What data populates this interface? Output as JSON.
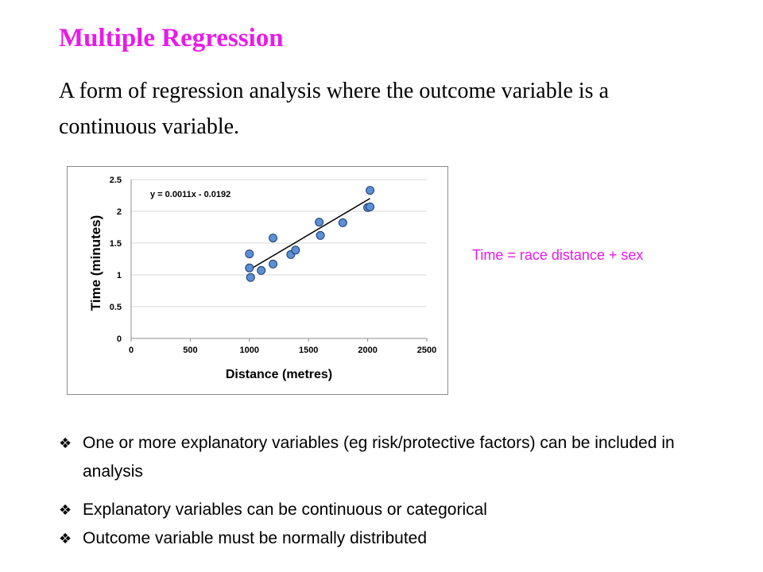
{
  "slide": {
    "title": "Multiple Regression",
    "subtitle": "A form of regression analysis where the outcome variable is a continuous variable.",
    "note": "Time = race distance + sex",
    "bullet_marker": "❖",
    "bullets": [
      "One or more explanatory variables (eg risk/protective factors) can be included in analysis",
      "Explanatory variables can be continuous or categorical",
      "Outcome variable must be normally distributed"
    ]
  },
  "chart_data": {
    "type": "scatter",
    "xlabel": "Distance (metres)",
    "ylabel": "Time (minutes)",
    "xlim": [
      0,
      2500
    ],
    "ylim": [
      0,
      2.5
    ],
    "x_ticks": [
      "0",
      "500",
      "1000",
      "1500",
      "2000",
      "2500"
    ],
    "y_ticks": [
      "0",
      "0.5",
      "1",
      "1.5",
      "2",
      "2.5"
    ],
    "grid": "horizontal",
    "trendline": {
      "label": "y = 0.0011x - 0.0192",
      "slope": 0.0011,
      "intercept": -0.0192,
      "x_range": [
        1000,
        2020
      ]
    },
    "colors": {
      "point_fill": "#5b8fd6",
      "point_stroke": "#1f3d6b",
      "trendline": "#000000",
      "grid": "#d9d9d9"
    },
    "points": [
      {
        "x": 1000,
        "y": 1.33
      },
      {
        "x": 1000,
        "y": 1.11
      },
      {
        "x": 1010,
        "y": 0.96
      },
      {
        "x": 1100,
        "y": 1.07
      },
      {
        "x": 1200,
        "y": 1.58
      },
      {
        "x": 1200,
        "y": 1.17
      },
      {
        "x": 1350,
        "y": 1.32
      },
      {
        "x": 1390,
        "y": 1.39
      },
      {
        "x": 1590,
        "y": 1.83
      },
      {
        "x": 1600,
        "y": 1.62
      },
      {
        "x": 1790,
        "y": 1.82
      },
      {
        "x": 2000,
        "y": 2.06
      },
      {
        "x": 2020,
        "y": 2.33
      },
      {
        "x": 2020,
        "y": 2.07
      }
    ]
  }
}
